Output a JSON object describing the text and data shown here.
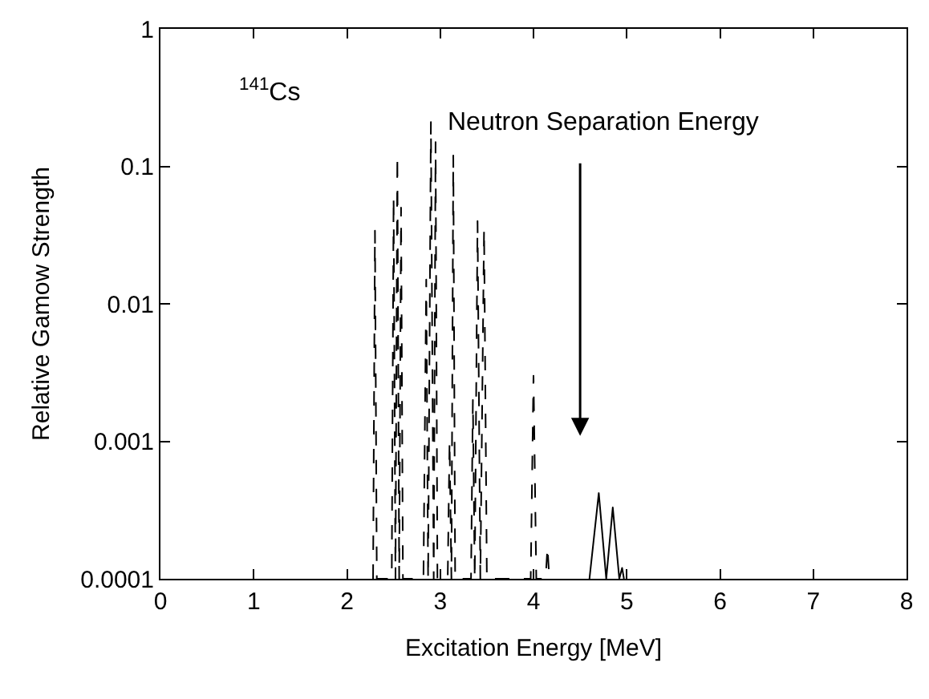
{
  "chart_data": {
    "type": "line",
    "xlabel": "Excitation Energy [MeV]",
    "ylabel": "Relative Gamow Strength",
    "log": "y",
    "marker": "none",
    "xlim": [
      0,
      8
    ],
    "xticks": [
      0,
      1,
      2,
      3,
      4,
      5,
      6,
      7,
      8
    ],
    "ylim": [
      0.0001,
      1
    ],
    "yticks": [
      0.0001,
      0.001,
      0.01,
      0.1,
      1
    ],
    "series": [
      {
        "color": "#000000",
        "line_style": "dashed",
        "x": [
          2.28,
          2.3,
          2.32,
          2.48,
          2.5,
          2.52,
          2.54,
          2.56,
          2.58,
          2.6,
          2.82,
          2.85,
          2.87,
          2.9,
          2.93,
          2.95,
          2.97,
          3.08,
          3.1,
          3.12,
          3.14,
          3.16,
          3.33,
          3.35,
          3.37,
          3.4,
          3.43,
          3.47,
          3.5,
          3.97,
          4.0,
          4.03,
          4.13,
          4.15,
          4.17
        ],
        "values": [
          0.0001,
          0.034,
          0.0001,
          0.0001,
          0.06,
          0.0001,
          0.12,
          0.0001,
          0.05,
          0.0001,
          0.0001,
          0.015,
          0.0001,
          0.21,
          0.0001,
          0.15,
          0.0001,
          0.0001,
          0.001,
          0.0001,
          0.12,
          0.0001,
          0.0001,
          0.002,
          0.0001,
          0.04,
          0.0001,
          0.035,
          0.0001,
          0.0001,
          0.003,
          0.0001,
          0.0001,
          0.00017,
          0.0001
        ]
      },
      {
        "color": "#000000",
        "line_style": "solid",
        "x": [
          4.6,
          4.7,
          4.78,
          4.85,
          4.92,
          4.95,
          4.97
        ],
        "values": [
          0.0001,
          0.00042,
          0.0001,
          0.00033,
          0.0001,
          0.00012,
          0.0001
        ]
      }
    ],
    "annotations": [
      "$^{141}$Cs",
      "Neutron Separation Energy"
    ]
  }
}
